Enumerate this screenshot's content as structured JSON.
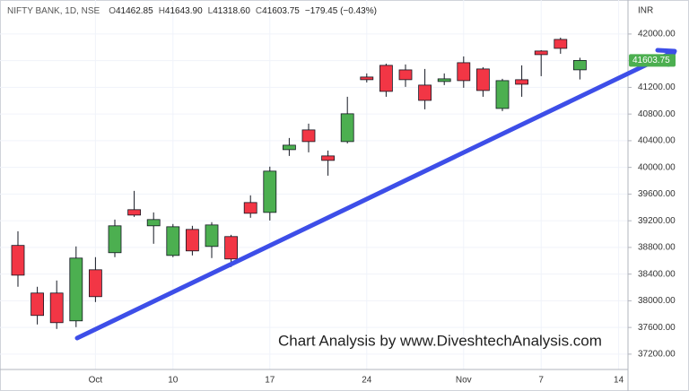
{
  "chart_data": {
    "type": "candlestick",
    "title": "NIFTY BANK, 1D, NSE",
    "header_labels": [
      "O",
      "H",
      "L",
      "C"
    ],
    "header_values": [
      "41462.85",
      "41643.90",
      "41318.60",
      "41603.75"
    ],
    "change": "−179.45 (−0.43%)",
    "currency": "INR",
    "annotation": "Chart Analysis by www.DiveshtechAnalysis.com",
    "categories": [
      null,
      null,
      null,
      null,
      "Oct",
      null,
      null,
      null,
      "10",
      null,
      null,
      null,
      null,
      "17",
      null,
      null,
      null,
      null,
      "24",
      null,
      null,
      null,
      null,
      "Nov",
      null,
      null,
      null,
      "7",
      null,
      null,
      null,
      "14"
    ],
    "open": [
      38830,
      38116,
      38116,
      37699,
      38465,
      38721,
      39366,
      39124,
      38680,
      39070,
      38815,
      38963,
      39473,
      39325,
      40266,
      40562,
      40172,
      40387,
      41355,
      41530,
      41462,
      41234,
      41288,
      41570,
      41476,
      40884,
      41315,
      41745,
      41919,
      41462.85,
      null,
      null
    ],
    "high": [
      39043,
      38210,
      38304,
      38815,
      38654,
      39218,
      39648,
      39325,
      39151,
      39124,
      39178,
      38989,
      39581,
      40011,
      40441,
      40656,
      40253,
      41059,
      41409,
      41556,
      41543,
      41476,
      41409,
      41664,
      41503,
      41328,
      41530,
      41758,
      41946,
      41643.9,
      null,
      null
    ],
    "low": [
      38210,
      37645,
      37578,
      37605,
      37981,
      38654,
      39258,
      38855,
      38654,
      38680,
      38640,
      38506,
      39245,
      39204,
      40172,
      40226,
      39876,
      40360,
      41274,
      41059,
      41207,
      40871,
      41234,
      41194,
      41059,
      40844,
      41059,
      41368,
      41704,
      41318.6,
      null,
      null
    ],
    "close": [
      38384,
      37780,
      37672,
      38640,
      38062,
      39124,
      39285,
      39218,
      39110,
      38748,
      39137,
      38627,
      39312,
      39944,
      40333,
      40387,
      40105,
      40804,
      41315,
      41140,
      41315,
      41005,
      41328,
      41301,
      41153,
      41301,
      41247,
      41691,
      41785,
      41603.75,
      null,
      null
    ],
    "up_color": "#4caf50",
    "down_color": "#f23645",
    "ylim": [
      36970,
      42510
    ],
    "yticks": [
      {
        "value": 37200,
        "label": "37200.00"
      },
      {
        "value": 37600,
        "label": "37600.00"
      },
      {
        "value": 38000,
        "label": "38000.00"
      },
      {
        "value": 38400,
        "label": "38400.00"
      },
      {
        "value": 38800,
        "label": "38800.00"
      },
      {
        "value": 39200,
        "label": "39200.00"
      },
      {
        "value": 39600,
        "label": "39600.00"
      },
      {
        "value": 40000,
        "label": "40000.00"
      },
      {
        "value": 40400,
        "label": "40400.00"
      },
      {
        "value": 40800,
        "label": "40800.00"
      },
      {
        "value": 41200,
        "label": "41200.00"
      },
      {
        "value": 41600,
        "label": "41600.00"
      },
      {
        "value": 42000,
        "label": "42000.00"
      }
    ],
    "grid": true
  }
}
